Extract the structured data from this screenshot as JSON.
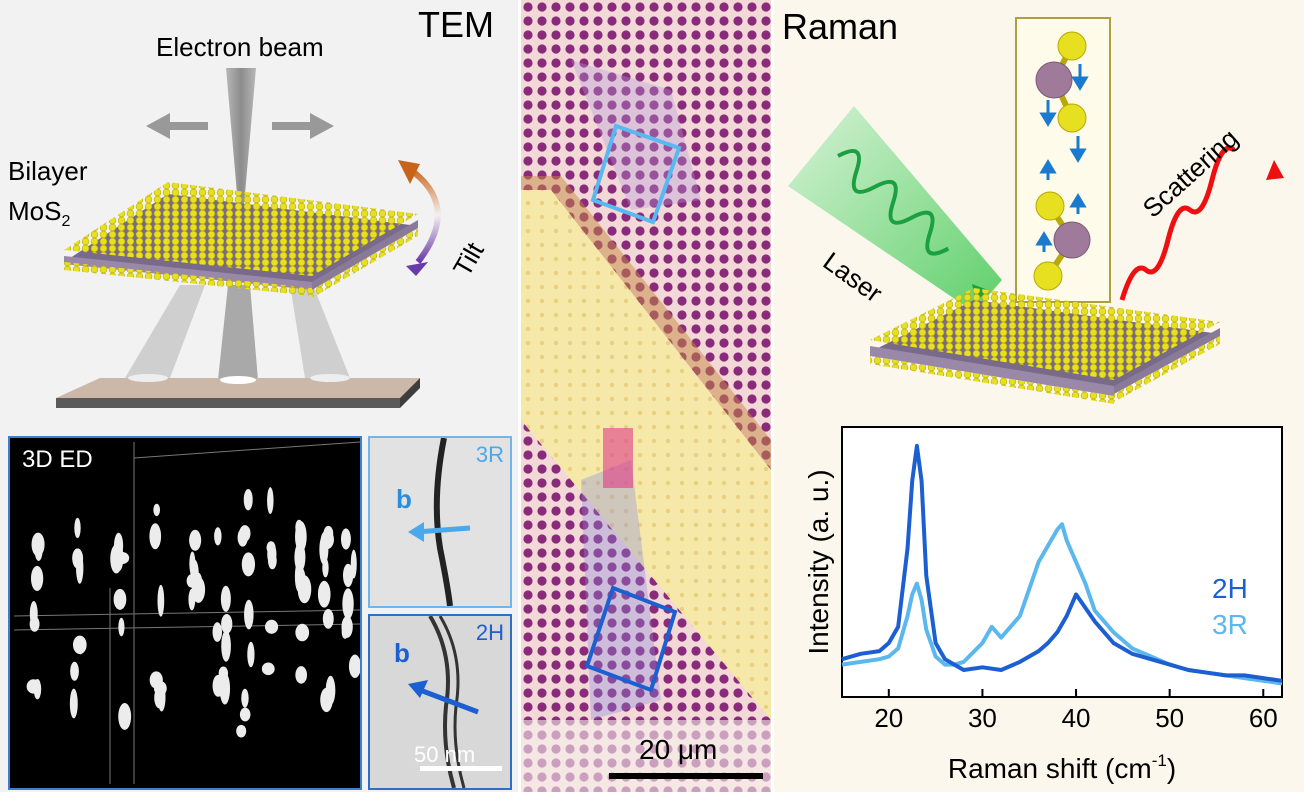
{
  "tem": {
    "title": "TEM",
    "beam_label": "Electron beam",
    "sample_label_line1": "Bilayer",
    "sample_label_line2": "MoS",
    "sample_label_sub": "2",
    "tilt_label": "Tilt",
    "ed_label": "3D ED",
    "inset_3r_label": "3R",
    "inset_2h_label": "2H",
    "vector_label": "b",
    "scalebar_label": "50 nm"
  },
  "micrograph": {
    "scalebar_label": "20 μm"
  },
  "raman": {
    "title": "Raman",
    "laser_label": "Laser",
    "scattering_label": "Scattering"
  },
  "chart_data": {
    "type": "line",
    "xlabel": "Raman shift (cm",
    "xlabel_sup": "-1",
    "xlabel_end": ")",
    "ylabel": "Intensity (a. u.)",
    "xlim": [
      15,
      62
    ],
    "ylim": [
      0,
      1
    ],
    "xticks": [
      "20",
      "30",
      "40",
      "50",
      "60"
    ],
    "xtick_values": [
      20,
      30,
      40,
      50,
      60
    ],
    "series": [
      {
        "name": "2H",
        "color": "#1c5fd1",
        "x": [
          15,
          17,
          19,
          20,
          21,
          22,
          22.5,
          23,
          23.5,
          24,
          25,
          26,
          27,
          28,
          30,
          32,
          34,
          36,
          37,
          38,
          39,
          40,
          41,
          42,
          44,
          46,
          48,
          50,
          52,
          54,
          56,
          58,
          60,
          62
        ],
        "y": [
          0.14,
          0.16,
          0.17,
          0.2,
          0.26,
          0.55,
          0.8,
          0.93,
          0.8,
          0.45,
          0.2,
          0.14,
          0.12,
          0.1,
          0.11,
          0.1,
          0.13,
          0.17,
          0.2,
          0.24,
          0.3,
          0.38,
          0.33,
          0.28,
          0.2,
          0.16,
          0.14,
          0.12,
          0.1,
          0.09,
          0.08,
          0.08,
          0.07,
          0.06
        ]
      },
      {
        "name": "3R",
        "color": "#5bb8ee",
        "x": [
          15,
          17,
          19,
          20,
          21,
          22,
          22.5,
          23,
          23.5,
          24,
          25,
          26,
          27,
          28,
          30,
          31,
          32,
          34,
          35,
          36,
          37,
          38,
          38.5,
          39,
          40,
          41,
          42,
          44,
          46,
          48,
          50,
          52,
          54,
          56,
          58,
          60,
          62
        ],
        "y": [
          0.12,
          0.13,
          0.14,
          0.15,
          0.18,
          0.3,
          0.38,
          0.42,
          0.36,
          0.25,
          0.15,
          0.12,
          0.12,
          0.13,
          0.2,
          0.26,
          0.22,
          0.3,
          0.4,
          0.5,
          0.56,
          0.62,
          0.64,
          0.58,
          0.5,
          0.42,
          0.32,
          0.24,
          0.18,
          0.15,
          0.12,
          0.1,
          0.09,
          0.08,
          0.07,
          0.06,
          0.05
        ]
      }
    ]
  }
}
